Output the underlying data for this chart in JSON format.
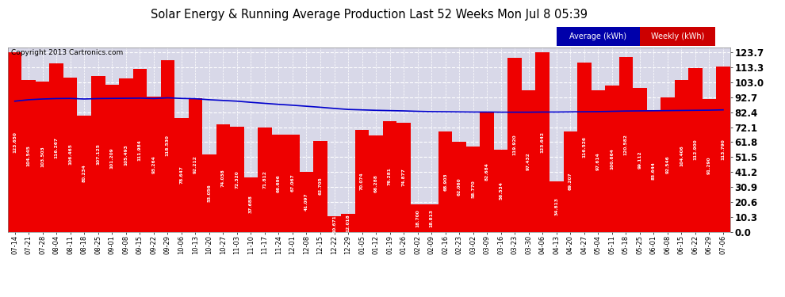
{
  "title": "Solar Energy & Running Average Production Last 52 Weeks Mon Jul 8 05:39",
  "copyright": "Copyright 2013 Cartronics.com",
  "legend_avg": "Average (kWh)",
  "legend_weekly": "Weekly (kWh)",
  "bar_color": "#ee0000",
  "avg_line_color": "#0000cc",
  "background_color": "#ffffff",
  "plot_bg_color": "#d8d8e8",
  "grid_color": "#ffffff",
  "ytick_labels": [
    "0.0",
    "10.3",
    "20.6",
    "30.9",
    "41.2",
    "51.5",
    "61.8",
    "72.1",
    "82.4",
    "92.7",
    "103.0",
    "113.3",
    "123.7"
  ],
  "ytick_values": [
    0.0,
    10.3,
    20.6,
    30.9,
    41.2,
    51.5,
    61.8,
    72.1,
    82.4,
    92.7,
    103.0,
    113.3,
    123.7
  ],
  "ylim": [
    0,
    127
  ],
  "categories": [
    "07-14",
    "07-21",
    "07-28",
    "08-04",
    "08-11",
    "08-18",
    "08-25",
    "09-01",
    "09-08",
    "09-15",
    "09-22",
    "09-29",
    "10-06",
    "10-13",
    "10-20",
    "10-27",
    "11-03",
    "11-10",
    "11-17",
    "11-24",
    "12-01",
    "12-08",
    "12-15",
    "12-22",
    "12-29",
    "01-05",
    "01-12",
    "01-19",
    "01-26",
    "02-02",
    "02-09",
    "02-16",
    "02-23",
    "03-02",
    "03-09",
    "03-16",
    "03-23",
    "03-30",
    "04-06",
    "04-13",
    "04-20",
    "04-27",
    "05-04",
    "05-11",
    "05-18",
    "05-25",
    "06-01",
    "06-08",
    "06-15",
    "06-22",
    "06-29",
    "07-06"
  ],
  "weekly_values": [
    123.65,
    104.545,
    103.503,
    116.267,
    106.465,
    80.234,
    107.125,
    101.209,
    105.493,
    111.984,
    93.264,
    118.53,
    78.647,
    92.212,
    53.056,
    74.038,
    72.32,
    37.688,
    71.812,
    66.696,
    67.067,
    41.097,
    62.705,
    10.671,
    12.018,
    70.074,
    66.288,
    76.281,
    74.877,
    18.7,
    18.813,
    68.903,
    62.06,
    58.77,
    82.684,
    56.534,
    119.92,
    97.432,
    123.642,
    34.813,
    69.207,
    116.526,
    97.614,
    100.664,
    120.582,
    99.112,
    83.644,
    92.546,
    104.406,
    112.9,
    91.29,
    113.79
  ],
  "avg_values": [
    90.0,
    91.0,
    91.5,
    91.8,
    91.9,
    91.5,
    91.8,
    91.9,
    92.0,
    92.1,
    91.8,
    92.3,
    91.9,
    91.7,
    91.0,
    90.5,
    90.0,
    89.2,
    88.5,
    87.8,
    87.2,
    86.5,
    85.8,
    85.0,
    84.3,
    84.0,
    83.7,
    83.5,
    83.3,
    83.0,
    82.8,
    82.7,
    82.6,
    82.5,
    82.5,
    82.4,
    82.4,
    82.4,
    82.5,
    82.5,
    82.6,
    82.7,
    82.8,
    83.0,
    83.2,
    83.3,
    83.4,
    83.5,
    83.6,
    83.7,
    83.8,
    84.0
  ]
}
